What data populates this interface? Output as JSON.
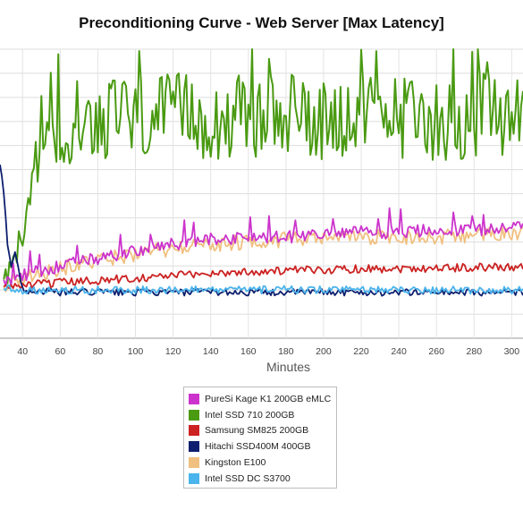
{
  "chart_data": {
    "type": "line",
    "title": "Preconditioning Curve - Web Server [Max Latency]",
    "xlabel": "Minutes",
    "ylabel": "",
    "x_ticks": [
      40,
      60,
      80,
      100,
      120,
      140,
      160,
      180,
      200,
      220,
      240,
      260,
      280,
      300
    ],
    "xlim": [
      28,
      306
    ],
    "ylim": [
      0,
      6000
    ],
    "grid": true,
    "legend_position": "bottom",
    "series": [
      {
        "name": "PureSi Kage K1 200GB eMLC",
        "color": "#cc33cc",
        "points": [
          [
            30,
            1150
          ],
          [
            40,
            1300
          ],
          [
            60,
            1500
          ],
          [
            80,
            1650
          ],
          [
            100,
            1800
          ],
          [
            120,
            1950
          ],
          [
            140,
            2050
          ],
          [
            160,
            2100
          ],
          [
            180,
            2100
          ],
          [
            200,
            2150
          ],
          [
            220,
            2200
          ],
          [
            240,
            2200
          ],
          [
            260,
            2250
          ],
          [
            280,
            2250
          ],
          [
            300,
            2300
          ],
          [
            306,
            2300
          ]
        ]
      },
      {
        "name": "Intel SSD 710 200GB",
        "color": "#4a9a12",
        "points": [
          [
            30,
            1100
          ],
          [
            35,
            1500
          ],
          [
            40,
            2100
          ],
          [
            45,
            3000
          ],
          [
            50,
            4300
          ],
          [
            60,
            4500
          ],
          [
            80,
            4600
          ],
          [
            100,
            4550
          ],
          [
            120,
            4600
          ],
          [
            140,
            4600
          ],
          [
            160,
            4550
          ],
          [
            180,
            4600
          ],
          [
            200,
            4600
          ],
          [
            220,
            4550
          ],
          [
            240,
            4600
          ],
          [
            260,
            4550
          ],
          [
            280,
            4600
          ],
          [
            300,
            4600
          ],
          [
            306,
            4550
          ]
        ]
      },
      {
        "name": "Samsung SM825 200GB",
        "color": "#cc2222",
        "points": [
          [
            30,
            1050
          ],
          [
            40,
            1100
          ],
          [
            60,
            1150
          ],
          [
            80,
            1200
          ],
          [
            100,
            1250
          ],
          [
            120,
            1300
          ],
          [
            140,
            1350
          ],
          [
            160,
            1380
          ],
          [
            180,
            1400
          ],
          [
            200,
            1420
          ],
          [
            220,
            1450
          ],
          [
            240,
            1450
          ],
          [
            260,
            1460
          ],
          [
            280,
            1470
          ],
          [
            300,
            1480
          ],
          [
            306,
            1480
          ]
        ]
      },
      {
        "name": "Hitachi SSD400M 400GB",
        "color": "#0d1f6e",
        "points": [
          [
            28,
            3600
          ],
          [
            30,
            3000
          ],
          [
            32,
            2000
          ],
          [
            34,
            1500
          ],
          [
            36,
            1800
          ],
          [
            38,
            1400
          ],
          [
            40,
            1000
          ],
          [
            60,
            950
          ],
          [
            80,
            960
          ],
          [
            100,
            950
          ],
          [
            120,
            950
          ],
          [
            140,
            960
          ],
          [
            160,
            950
          ],
          [
            180,
            950
          ],
          [
            200,
            960
          ],
          [
            220,
            950
          ],
          [
            240,
            950
          ],
          [
            260,
            960
          ],
          [
            280,
            950
          ],
          [
            300,
            950
          ],
          [
            306,
            950
          ]
        ]
      },
      {
        "name": "Kingston E100",
        "color": "#f0c080",
        "points": [
          [
            30,
            1100
          ],
          [
            40,
            1250
          ],
          [
            60,
            1450
          ],
          [
            80,
            1600
          ],
          [
            100,
            1750
          ],
          [
            120,
            1850
          ],
          [
            140,
            1950
          ],
          [
            160,
            2000
          ],
          [
            180,
            2050
          ],
          [
            200,
            2050
          ],
          [
            220,
            2100
          ],
          [
            240,
            2100
          ],
          [
            260,
            2100
          ],
          [
            280,
            2150
          ],
          [
            300,
            2150
          ],
          [
            306,
            2150
          ]
        ]
      },
      {
        "name": "Intel SSD DC S3700",
        "color": "#4ab4ec",
        "points": [
          [
            30,
            1050
          ],
          [
            40,
            1000
          ],
          [
            60,
            1000
          ],
          [
            80,
            1000
          ],
          [
            100,
            1000
          ],
          [
            120,
            1010
          ],
          [
            140,
            1000
          ],
          [
            160,
            1000
          ],
          [
            180,
            1010
          ],
          [
            200,
            1000
          ],
          [
            220,
            1000
          ],
          [
            240,
            1010
          ],
          [
            260,
            1000
          ],
          [
            280,
            1000
          ],
          [
            300,
            1000
          ],
          [
            306,
            1000
          ]
        ]
      }
    ]
  }
}
